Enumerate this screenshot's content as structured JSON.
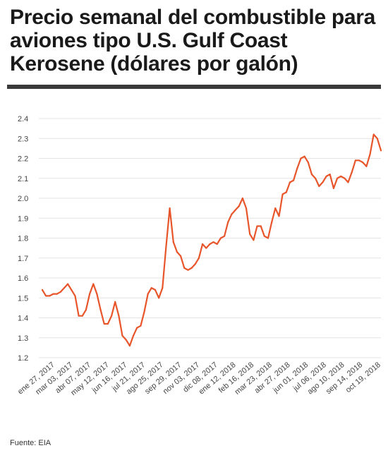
{
  "title": "Precio semanal del combustible para aviones tipo U.S. Gulf Coast Kerosene (dólares por galón)",
  "source": "Fuente: EIA",
  "colors": {
    "line": "#e8552b",
    "grid": "#e3e3e3",
    "rule": "#3a3a3a"
  },
  "chart_data": {
    "type": "line",
    "title": "Precio semanal del combustible para aviones tipo U.S. Gulf Coast Kerosene (dólares por galón)",
    "xlabel": "",
    "ylabel": "",
    "ylim": [
      1.2,
      2.4
    ],
    "yticks": [
      "1.2",
      "1.3",
      "1.4",
      "1.5",
      "1.6",
      "1.7",
      "1.8",
      "1.9",
      "2.0",
      "2.1",
      "2.2",
      "2.3",
      "2.4"
    ],
    "xticks": [
      "ene 27, 2017",
      "mar 03, 2017",
      "abr 07, 2017",
      "may 12, 2017",
      "jun 16, 2017",
      "jul 21, 2017",
      "ago 25, 2017",
      "sep 29, 2017",
      "nov 03, 2017",
      "dic 08, 2017",
      "ene 12, 2018",
      "feb 16, 2018",
      "mar 23, 2018",
      "abr 27, 2018",
      "jun 01, 2018",
      "jul 06, 2018",
      "ago 10, 2018",
      "sep 14, 2018",
      "oct 19, 2018"
    ],
    "grid": true,
    "legend": "none",
    "series": [
      {
        "values": [
          1.54,
          1.51,
          1.51,
          1.52,
          1.52,
          1.53,
          1.55,
          1.57,
          1.54,
          1.51,
          1.41,
          1.41,
          1.44,
          1.52,
          1.57,
          1.52,
          1.44,
          1.37,
          1.37,
          1.41,
          1.48,
          1.41,
          1.31,
          1.29,
          1.26,
          1.31,
          1.35,
          1.36,
          1.43,
          1.52,
          1.55,
          1.54,
          1.5,
          1.55,
          1.76,
          1.95,
          1.78,
          1.73,
          1.71,
          1.65,
          1.64,
          1.65,
          1.67,
          1.7,
          1.77,
          1.75,
          1.77,
          1.78,
          1.77,
          1.8,
          1.81,
          1.88,
          1.92,
          1.94,
          1.96,
          2.0,
          1.95,
          1.82,
          1.79,
          1.86,
          1.86,
          1.81,
          1.8,
          1.88,
          1.95,
          1.91,
          2.02,
          2.03,
          2.08,
          2.09,
          2.15,
          2.2,
          2.21,
          2.18,
          2.12,
          2.1,
          2.06,
          2.08,
          2.11,
          2.12,
          2.05,
          2.1,
          2.11,
          2.1,
          2.08,
          2.13,
          2.19,
          2.19,
          2.18,
          2.16,
          2.22,
          2.32,
          2.3,
          2.24
        ]
      }
    ]
  }
}
